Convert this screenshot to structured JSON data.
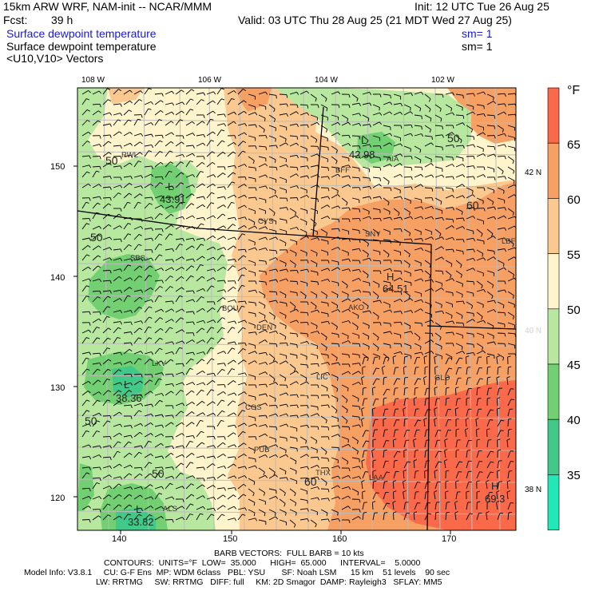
{
  "header": {
    "model": "15km ARW WRF, NAM-init -- NCAR/MMM",
    "init": "Init: 12 UTC Tue 26 Aug 25",
    "fcst_label": "Fcst:",
    "fcst_value": "39 h",
    "valid": "Valid: 03 UTC Thu 28 Aug 25 (21 MDT Wed 27 Aug 25)",
    "field1": "Surface dewpoint temperature",
    "sm1": "sm= 1",
    "field2": "Surface dewpoint temperature",
    "sm2": "sm= 1",
    "vectors": "<U10,V10> Vectors"
  },
  "axes": {
    "top_lon": [
      "108 W",
      "106 W",
      "104 W",
      "102 W"
    ],
    "right_lat": [
      "42 N",
      "40 N",
      "38 N"
    ],
    "left_grid": [
      "150",
      "140",
      "130",
      "120"
    ],
    "bottom_grid": [
      "140",
      "150",
      "160",
      "170"
    ]
  },
  "colorbar": {
    "unit": "°F",
    "labels": [
      "65",
      "60",
      "55",
      "50",
      "45",
      "40",
      "35"
    ],
    "colors": [
      "#fa6a4a",
      "#f7a064",
      "#fbc990",
      "#fff4cc",
      "#b8e8a0",
      "#72d072",
      "#42c888",
      "#22e8b8"
    ]
  },
  "stations": [
    "RWL",
    "BFF",
    "AIA",
    "CYS",
    "SNY",
    "LBF",
    "SBS",
    "BOU",
    "DEN",
    "AKO",
    "LXV",
    "LIC",
    "GLD",
    "COS",
    "PUB",
    "THX",
    "LAA",
    "ALS"
  ],
  "extrema": [
    {
      "type": "L",
      "value": "43.91"
    },
    {
      "type": "L",
      "value": "42.98"
    },
    {
      "type": "H",
      "value": "64.51"
    },
    {
      "type": "L",
      "value": "38.36"
    },
    {
      "type": "L",
      "value": "33.82"
    },
    {
      "type": "H",
      "value": "69.3"
    }
  ],
  "contour_labels": [
    "50",
    "50",
    "60",
    "50",
    "50",
    "50",
    "60"
  ],
  "footer": {
    "barbs": "BARB VECTORS:  FULL BARB = 10 kts",
    "contours": "CONTOURS:  UNITS=°F  LOW=  35.000      HIGH=  65.000      INTERVAL=    5.0000",
    "model_info": "Model Info: V3.8.1     CU: G-F Ens  MP: WDM 6class   PBL: YSU       SF: Noah LSM      15 km    51 levels    90 sec",
    "physics": "LW: RRTMG     SW: RRTMG   DIFF: full     KM: 2D Smagor  DAMP: Rayleigh3   SFLAY: MM5"
  }
}
